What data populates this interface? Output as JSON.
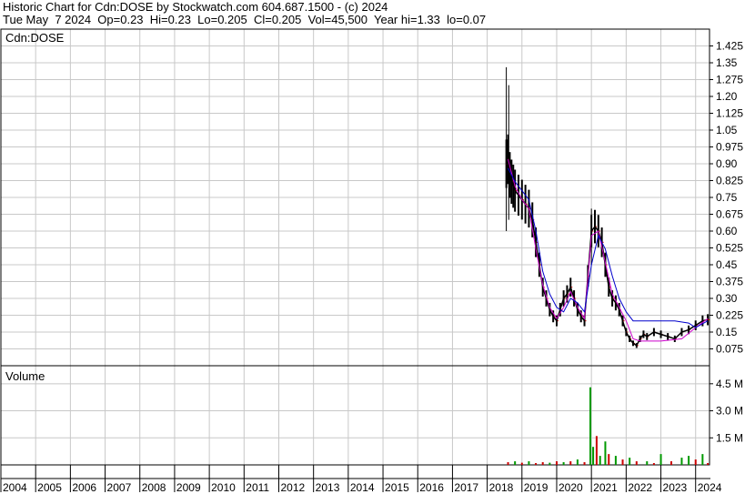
{
  "header": {
    "line1": "Historic Chart for Cdn:DOSE by Stockwatch.com 604.687.1500 - (c) 2024",
    "line2": "Tue May  7 2024  Op=0.23  Hi=0.23  Lo=0.205  Cl=0.205  Vol=45,500  Year hi=1.33  lo=0.07"
  },
  "price_panel": {
    "label": "Cdn:DOSE"
  },
  "volume_panel": {
    "label": "Volume"
  },
  "colors": {
    "candle": "#000000",
    "down_tick": "#cc0000",
    "ma_fast": "#cc00cc",
    "ma_slow": "#0000cc",
    "vol_up": "#009900",
    "vol_down": "#cc0000",
    "grid": "#c8c8c8"
  },
  "chart_data": [
    {
      "type": "line",
      "title": "Cdn:DOSE",
      "ylim": [
        0,
        1.5
      ],
      "y_ticks": [
        "1.425",
        "1.35",
        "1.275",
        "1.20",
        "1.125",
        "1.05",
        "0.975",
        "0.90",
        "0.825",
        "0.75",
        "0.675",
        "0.60",
        "0.525",
        "0.45",
        "0.375",
        "0.30",
        "0.225",
        "0.15",
        "0.075"
      ],
      "x_ticks": [
        "2004",
        "2005",
        "2006",
        "2007",
        "2008",
        "2009",
        "2010",
        "2011",
        "2012",
        "2013",
        "2014",
        "2015",
        "2016",
        "2017",
        "2018",
        "2019",
        "2020",
        "2021",
        "2022",
        "2023",
        "2024"
      ],
      "xlim": [
        2004.0,
        2024.4
      ],
      "spikes": [
        {
          "x": 2018.55,
          "hi": 1.33,
          "lo": 0.6
        },
        {
          "x": 2018.62,
          "hi": 1.25,
          "lo": 0.65
        },
        {
          "x": 2021.0,
          "hi": 0.7,
          "lo": 0.45
        }
      ],
      "series": [
        {
          "name": "price",
          "x": [
            2018.55,
            2018.6,
            2018.65,
            2018.7,
            2018.75,
            2018.8,
            2018.9,
            2019.0,
            2019.1,
            2019.2,
            2019.3,
            2019.4,
            2019.5,
            2019.6,
            2019.7,
            2019.8,
            2019.9,
            2020.0,
            2020.1,
            2020.2,
            2020.3,
            2020.4,
            2020.5,
            2020.6,
            2020.7,
            2020.8,
            2020.9,
            2021.0,
            2021.1,
            2021.2,
            2021.3,
            2021.4,
            2021.5,
            2021.6,
            2021.7,
            2021.8,
            2021.9,
            2022.0,
            2022.1,
            2022.2,
            2022.3,
            2022.4,
            2022.5,
            2022.6,
            2022.8,
            2023.0,
            2023.2,
            2023.4,
            2023.6,
            2023.8,
            2024.0,
            2024.2,
            2024.35
          ],
          "values": [
            0.9,
            0.92,
            0.85,
            0.82,
            0.8,
            0.78,
            0.76,
            0.74,
            0.72,
            0.7,
            0.65,
            0.55,
            0.45,
            0.35,
            0.3,
            0.25,
            0.22,
            0.2,
            0.25,
            0.3,
            0.32,
            0.35,
            0.3,
            0.25,
            0.22,
            0.2,
            0.4,
            0.6,
            0.62,
            0.6,
            0.55,
            0.45,
            0.35,
            0.3,
            0.28,
            0.25,
            0.2,
            0.15,
            0.12,
            0.1,
            0.09,
            0.12,
            0.14,
            0.13,
            0.15,
            0.14,
            0.13,
            0.12,
            0.15,
            0.16,
            0.18,
            0.2,
            0.205
          ]
        },
        {
          "name": "ma_fast",
          "x": [
            2018.6,
            2018.8,
            2019.0,
            2019.2,
            2019.4,
            2019.6,
            2019.8,
            2020.0,
            2020.2,
            2020.4,
            2020.6,
            2020.8,
            2021.0,
            2021.2,
            2021.4,
            2021.6,
            2021.8,
            2022.0,
            2022.2,
            2022.4,
            2022.6,
            2023.0,
            2023.6,
            2024.0,
            2024.35
          ],
          "values": [
            0.92,
            0.8,
            0.74,
            0.7,
            0.52,
            0.36,
            0.26,
            0.21,
            0.26,
            0.33,
            0.26,
            0.21,
            0.58,
            0.6,
            0.46,
            0.32,
            0.26,
            0.2,
            0.12,
            0.11,
            0.11,
            0.11,
            0.12,
            0.17,
            0.21
          ]
        },
        {
          "name": "ma_slow",
          "x": [
            2018.6,
            2018.8,
            2019.0,
            2019.2,
            2019.4,
            2019.6,
            2019.8,
            2020.0,
            2020.2,
            2020.4,
            2020.6,
            2020.8,
            2021.0,
            2021.2,
            2021.4,
            2021.6,
            2021.8,
            2022.0,
            2022.2,
            2022.6,
            2023.0,
            2023.4,
            2023.8,
            2024.0,
            2024.35
          ],
          "values": [
            0.88,
            0.82,
            0.78,
            0.74,
            0.6,
            0.42,
            0.32,
            0.26,
            0.24,
            0.3,
            0.28,
            0.24,
            0.45,
            0.58,
            0.52,
            0.4,
            0.3,
            0.24,
            0.2,
            0.2,
            0.2,
            0.2,
            0.19,
            0.17,
            0.2
          ]
        }
      ]
    },
    {
      "type": "bar",
      "title": "Volume",
      "ylim": [
        0,
        5.5
      ],
      "y_ticks": [
        "4.5 M",
        "3.0 M",
        "1.5 M"
      ],
      "y_tick_values": [
        4.5,
        3.0,
        1.5
      ],
      "bars": [
        {
          "x": 2018.6,
          "value": 0.15,
          "up": false
        },
        {
          "x": 2018.8,
          "value": 0.2,
          "up": true
        },
        {
          "x": 2019.0,
          "value": 0.12,
          "up": false
        },
        {
          "x": 2019.2,
          "value": 0.2,
          "up": true
        },
        {
          "x": 2019.4,
          "value": 0.1,
          "up": false
        },
        {
          "x": 2019.6,
          "value": 0.15,
          "up": false
        },
        {
          "x": 2019.8,
          "value": 0.12,
          "up": true
        },
        {
          "x": 2020.0,
          "value": 0.2,
          "up": false
        },
        {
          "x": 2020.2,
          "value": 0.15,
          "up": true
        },
        {
          "x": 2020.4,
          "value": 0.2,
          "up": false
        },
        {
          "x": 2020.6,
          "value": 0.3,
          "up": true
        },
        {
          "x": 2020.8,
          "value": 0.15,
          "up": false
        },
        {
          "x": 2020.97,
          "value": 4.3,
          "up": true
        },
        {
          "x": 2021.05,
          "value": 1.0,
          "up": true
        },
        {
          "x": 2021.15,
          "value": 1.6,
          "up": false
        },
        {
          "x": 2021.25,
          "value": 0.5,
          "up": true
        },
        {
          "x": 2021.4,
          "value": 1.3,
          "up": true
        },
        {
          "x": 2021.5,
          "value": 0.6,
          "up": false
        },
        {
          "x": 2021.7,
          "value": 0.5,
          "up": true
        },
        {
          "x": 2021.9,
          "value": 0.3,
          "up": false
        },
        {
          "x": 2022.1,
          "value": 0.4,
          "up": true
        },
        {
          "x": 2022.3,
          "value": 0.2,
          "up": false
        },
        {
          "x": 2022.6,
          "value": 0.2,
          "up": true
        },
        {
          "x": 2022.8,
          "value": 0.1,
          "up": false
        },
        {
          "x": 2023.0,
          "value": 0.6,
          "up": true
        },
        {
          "x": 2023.3,
          "value": 0.2,
          "up": false
        },
        {
          "x": 2023.6,
          "value": 0.4,
          "up": true
        },
        {
          "x": 2023.8,
          "value": 0.5,
          "up": true
        },
        {
          "x": 2024.0,
          "value": 0.3,
          "up": false
        },
        {
          "x": 2024.2,
          "value": 0.6,
          "up": true
        },
        {
          "x": 2024.35,
          "value": 0.1,
          "up": false
        }
      ]
    }
  ]
}
